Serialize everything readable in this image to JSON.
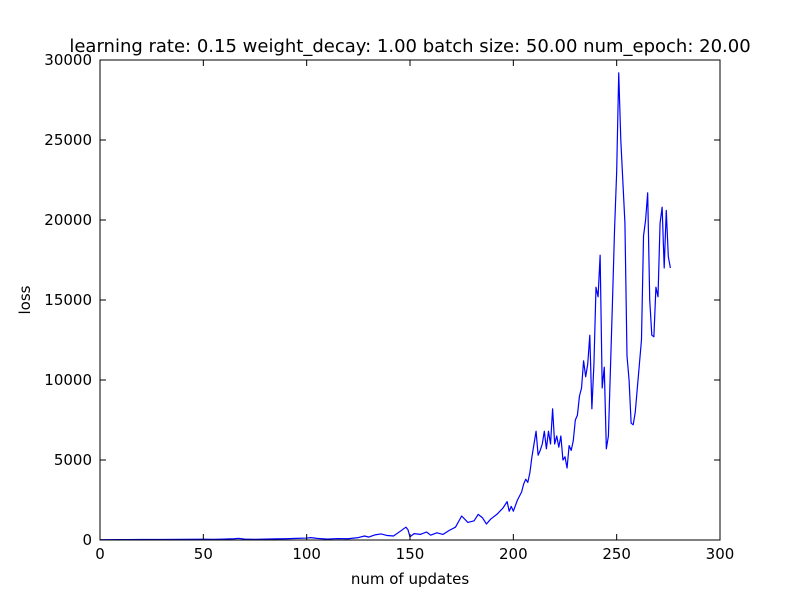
{
  "chart_data": {
    "type": "line",
    "title": "learning rate: 0.15 weight_decay: 1.00 batch size: 50.00 num_epoch: 20.00",
    "xlabel": "num of updates",
    "ylabel": "loss",
    "xlim": [
      0,
      300
    ],
    "ylim": [
      0,
      30000
    ],
    "xticks": [
      0,
      50,
      100,
      150,
      200,
      250,
      300
    ],
    "yticks": [
      0,
      5000,
      10000,
      15000,
      20000,
      25000,
      30000
    ],
    "grid": false,
    "line_color": "#0000ff",
    "series": [
      {
        "points": [
          [
            0,
            20
          ],
          [
            10,
            25
          ],
          [
            20,
            30
          ],
          [
            30,
            35
          ],
          [
            40,
            40
          ],
          [
            50,
            45
          ],
          [
            55,
            40
          ],
          [
            60,
            60
          ],
          [
            65,
            80
          ],
          [
            67,
            100
          ],
          [
            70,
            60
          ],
          [
            75,
            40
          ],
          [
            80,
            60
          ],
          [
            85,
            70
          ],
          [
            90,
            80
          ],
          [
            95,
            100
          ],
          [
            100,
            120
          ],
          [
            102,
            150
          ],
          [
            105,
            100
          ],
          [
            110,
            60
          ],
          [
            115,
            90
          ],
          [
            120,
            80
          ],
          [
            125,
            150
          ],
          [
            128,
            250
          ],
          [
            130,
            180
          ],
          [
            133,
            320
          ],
          [
            136,
            380
          ],
          [
            139,
            280
          ],
          [
            142,
            250
          ],
          [
            145,
            520
          ],
          [
            148,
            800
          ],
          [
            149,
            650
          ],
          [
            150,
            200
          ],
          [
            152,
            400
          ],
          [
            155,
            350
          ],
          [
            158,
            500
          ],
          [
            160,
            300
          ],
          [
            163,
            450
          ],
          [
            166,
            350
          ],
          [
            169,
            600
          ],
          [
            172,
            800
          ],
          [
            175,
            1500
          ],
          [
            178,
            1100
          ],
          [
            181,
            1200
          ],
          [
            183,
            1600
          ],
          [
            185,
            1400
          ],
          [
            187,
            1000
          ],
          [
            189,
            1300
          ],
          [
            192,
            1600
          ],
          [
            195,
            2000
          ],
          [
            197,
            2400
          ],
          [
            198,
            1800
          ],
          [
            199,
            2100
          ],
          [
            200,
            1800
          ],
          [
            202,
            2500
          ],
          [
            204,
            3000
          ],
          [
            205,
            3500
          ],
          [
            206,
            3800
          ],
          [
            207,
            3600
          ],
          [
            208,
            4200
          ],
          [
            209,
            5200
          ],
          [
            210,
            6000
          ],
          [
            211,
            6800
          ],
          [
            212,
            5300
          ],
          [
            213,
            5600
          ],
          [
            214,
            6000
          ],
          [
            215,
            6800
          ],
          [
            216,
            5700
          ],
          [
            217,
            6800
          ],
          [
            218,
            6000
          ],
          [
            219,
            8200
          ],
          [
            220,
            6000
          ],
          [
            221,
            6500
          ],
          [
            222,
            5800
          ],
          [
            223,
            6500
          ],
          [
            224,
            5000
          ],
          [
            225,
            5200
          ],
          [
            226,
            4500
          ],
          [
            227,
            5900
          ],
          [
            228,
            5600
          ],
          [
            229,
            6200
          ],
          [
            230,
            7500
          ],
          [
            231,
            7800
          ],
          [
            232,
            9000
          ],
          [
            233,
            9500
          ],
          [
            234,
            11200
          ],
          [
            235,
            10200
          ],
          [
            236,
            11000
          ],
          [
            237,
            12800
          ],
          [
            238,
            8200
          ],
          [
            239,
            11000
          ],
          [
            240,
            15800
          ],
          [
            241,
            15200
          ],
          [
            242,
            17800
          ],
          [
            243,
            9500
          ],
          [
            244,
            10800
          ],
          [
            245,
            5700
          ],
          [
            246,
            6500
          ],
          [
            248,
            15000
          ],
          [
            249,
            19500
          ],
          [
            250,
            23000
          ],
          [
            251,
            29200
          ],
          [
            252,
            25000
          ],
          [
            254,
            19800
          ],
          [
            255,
            11500
          ],
          [
            256,
            10000
          ],
          [
            257,
            7300
          ],
          [
            258,
            7200
          ],
          [
            259,
            8000
          ],
          [
            260,
            9500
          ],
          [
            261,
            11000
          ],
          [
            262,
            12500
          ],
          [
            263,
            19000
          ],
          [
            264,
            20000
          ],
          [
            265,
            21700
          ],
          [
            266,
            15000
          ],
          [
            267,
            12800
          ],
          [
            268,
            12700
          ],
          [
            269,
            15800
          ],
          [
            270,
            15200
          ],
          [
            271,
            19800
          ],
          [
            272,
            20800
          ],
          [
            273,
            17000
          ],
          [
            274,
            20600
          ],
          [
            275,
            17700
          ],
          [
            276,
            17000
          ]
        ]
      }
    ]
  }
}
